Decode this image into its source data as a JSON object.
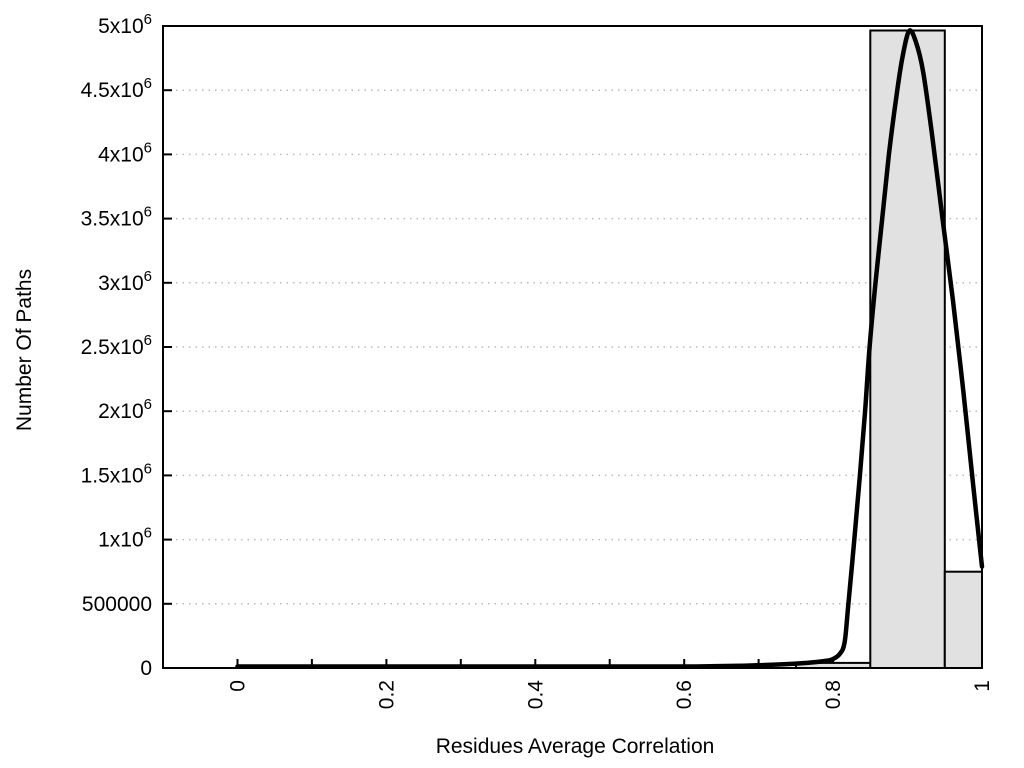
{
  "page": {
    "background": "#ffffff"
  },
  "chart_data": {
    "type": "bar",
    "subtype": "histogram-with-smoothed-frequency-curve",
    "title": "",
    "xlabel": "Residues Average Correlation",
    "ylabel": "Number Of Paths",
    "xlim": [
      -0.1,
      1.0
    ],
    "ylim": [
      0,
      5000000
    ],
    "grid": {
      "horizontal": true,
      "vertical": false,
      "style": "dotted",
      "color": "#bbbbbb"
    },
    "legend": "none",
    "colors": {
      "bar_fill": "#e1e1e1",
      "bar_border": "#000000",
      "curve": "#000000",
      "axis": "#000000",
      "text": "#000000"
    },
    "bars": [
      {
        "x0": 0.75,
        "x1": 0.85,
        "count": 40000
      },
      {
        "x0": 0.85,
        "x1": 0.95,
        "count": 4965000
      },
      {
        "x0": 0.95,
        "x1": 1.0,
        "count": 750000
      }
    ],
    "series": [
      {
        "name": "smoothed-distribution",
        "type": "line",
        "points": [
          [
            0.0,
            2000
          ],
          [
            0.1,
            2000
          ],
          [
            0.2,
            2500
          ],
          [
            0.3,
            3000
          ],
          [
            0.4,
            4500
          ],
          [
            0.5,
            6500
          ],
          [
            0.6,
            11000
          ],
          [
            0.68,
            18000
          ],
          [
            0.73,
            28000
          ],
          [
            0.765,
            40000
          ],
          [
            0.79,
            55000
          ],
          [
            0.8,
            70000
          ],
          [
            0.809,
            110000
          ],
          [
            0.8155,
            200000
          ],
          [
            0.8205,
            500000
          ],
          [
            0.8285,
            1000000
          ],
          [
            0.836,
            1500000
          ],
          [
            0.843,
            2000000
          ],
          [
            0.849,
            2500000
          ],
          [
            0.857,
            3000000
          ],
          [
            0.866,
            3500000
          ],
          [
            0.875,
            4000000
          ],
          [
            0.885,
            4450000
          ],
          [
            0.893,
            4750000
          ],
          [
            0.902,
            4960000
          ],
          [
            0.911,
            4880000
          ],
          [
            0.921,
            4640000
          ],
          [
            0.933,
            4150000
          ],
          [
            0.947,
            3500000
          ],
          [
            0.961,
            2860000
          ],
          [
            0.975,
            2150000
          ],
          [
            0.988,
            1430000
          ],
          [
            1.0,
            790000
          ]
        ]
      }
    ],
    "yticks": [
      {
        "v": 0,
        "m": "0",
        "e": ""
      },
      {
        "v": 500000,
        "m": "500000",
        "e": ""
      },
      {
        "v": 1000000,
        "m": "1x10",
        "e": "6"
      },
      {
        "v": 1500000,
        "m": "1.5x10",
        "e": "6"
      },
      {
        "v": 2000000,
        "m": "2x10",
        "e": "6"
      },
      {
        "v": 2500000,
        "m": "2.5x10",
        "e": "6"
      },
      {
        "v": 3000000,
        "m": "3x10",
        "e": "6"
      },
      {
        "v": 3500000,
        "m": "3.5x10",
        "e": "6"
      },
      {
        "v": 4000000,
        "m": "4x10",
        "e": "6"
      },
      {
        "v": 4500000,
        "m": "4.5x10",
        "e": "6"
      },
      {
        "v": 5000000,
        "m": "5x10",
        "e": "6"
      }
    ],
    "xticks": {
      "major": [
        {
          "v": 0,
          "label": "0"
        },
        {
          "v": 0.2,
          "label": "0.2"
        },
        {
          "v": 0.4,
          "label": "0.4"
        },
        {
          "v": 0.6,
          "label": "0.6"
        },
        {
          "v": 0.8,
          "label": "0.8"
        },
        {
          "v": 1,
          "label": "1"
        }
      ],
      "minor": [
        0.1,
        0.3,
        0.5,
        0.7,
        0.9
      ]
    }
  }
}
